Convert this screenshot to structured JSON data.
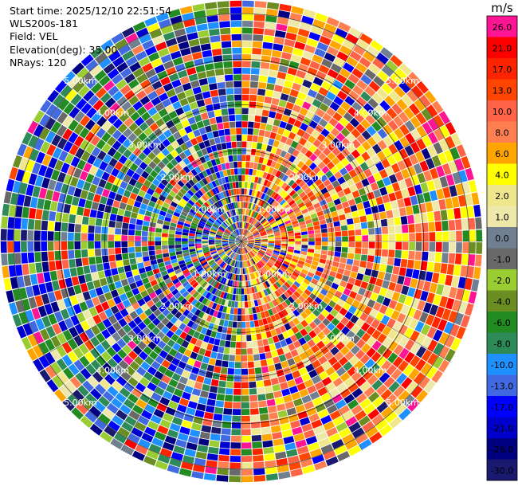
{
  "header": {
    "start_time": "Start time: 2025/12/10 22:51:54",
    "instrument": "WLS200s-181",
    "field": "Field: VEL",
    "elevation": "Elevation(deg): 35.00",
    "nrays": "NRays: 120"
  },
  "chart_data": {
    "type": "heatmap",
    "projection": "polar",
    "n_rays": 120,
    "range_rings_km": [
      1.0,
      2.0,
      3.0,
      4.0,
      5.0
    ],
    "range_labels": [
      "1.00km",
      "2.00km",
      "3.00km",
      "4.00km",
      "5.00km"
    ],
    "max_range_km": 5.3,
    "unit": "m/s",
    "colorbar": [
      {
        "label": "26.0",
        "color": "#ff1493"
      },
      {
        "label": "21.0",
        "color": "#ff0000"
      },
      {
        "label": "17.0",
        "color": "#ff2400"
      },
      {
        "label": "13.0",
        "color": "#ff4500"
      },
      {
        "label": "10.0",
        "color": "#ff6347"
      },
      {
        "label": "8.0",
        "color": "#ff7f50"
      },
      {
        "label": "6.0",
        "color": "#ffa500"
      },
      {
        "label": "4.0",
        "color": "#ffff00"
      },
      {
        "label": "2.0",
        "color": "#f0e68c"
      },
      {
        "label": "1.0",
        "color": "#eee8aa"
      },
      {
        "label": "0.0",
        "color": "#708090"
      },
      {
        "label": "-1.0",
        "color": "#696969"
      },
      {
        "label": "-2.0",
        "color": "#9acd32"
      },
      {
        "label": "-4.0",
        "color": "#6b8e23"
      },
      {
        "label": "-6.0",
        "color": "#228b22"
      },
      {
        "label": "-8.0",
        "color": "#2e8b57"
      },
      {
        "label": "-10.0",
        "color": "#1e90ff"
      },
      {
        "label": "-13.0",
        "color": "#4169e1"
      },
      {
        "label": "-17.0",
        "color": "#0000ff"
      },
      {
        "label": "-21.0",
        "color": "#0000cd"
      },
      {
        "label": "-26.0",
        "color": "#000080"
      },
      {
        "label": "-30.0",
        "color": "#191970"
      }
    ]
  }
}
